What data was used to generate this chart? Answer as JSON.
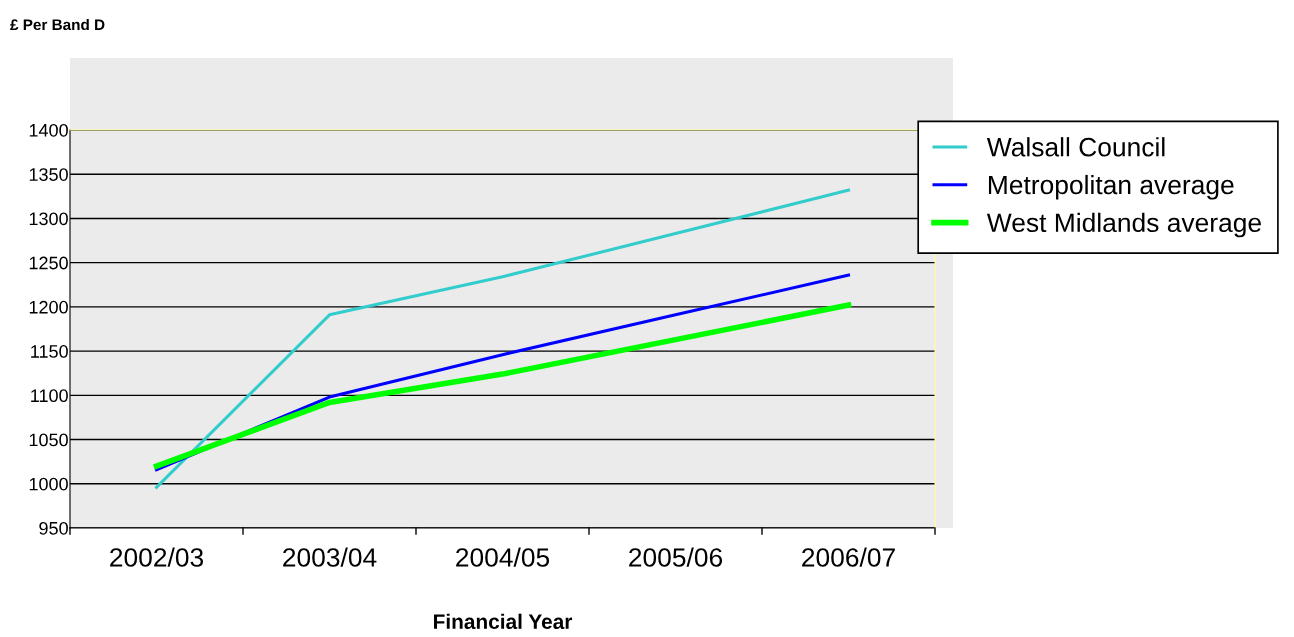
{
  "chart_data": {
    "type": "line",
    "annotations": [
      "£ Per Band D"
    ],
    "xlabel": "Financial Year",
    "categories": [
      "2002/03",
      "2003/04",
      "2004/05",
      "2005/06",
      "2006/07"
    ],
    "series": [
      {
        "name": "Walsall Council",
        "color": "#33cccc",
        "values": [
          996,
          1191,
          1234,
          1283,
          1332
        ]
      },
      {
        "name": "Metropolitan average",
        "color": "#0000ff",
        "values": [
          1016,
          1098,
          1146,
          1191,
          1236
        ]
      },
      {
        "name": "West Midlands average",
        "color": "#00ff00",
        "values": [
          1020,
          1092,
          1124,
          1163,
          1202
        ]
      }
    ],
    "ylim": [
      950,
      1400
    ],
    "yticks": [
      950,
      1000,
      1050,
      1100,
      1150,
      1200,
      1250,
      1300,
      1350,
      1400
    ],
    "grid": "y",
    "legend": "top right",
    "marker": "none",
    "line_style": "solid"
  }
}
